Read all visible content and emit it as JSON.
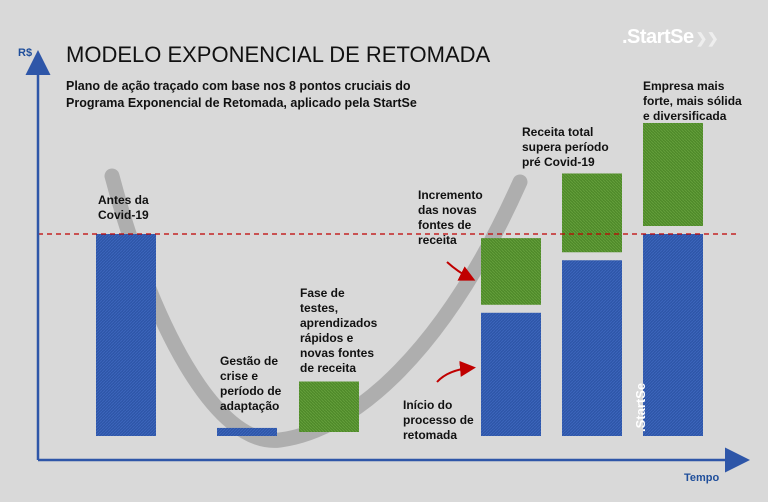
{
  "brand": {
    "logo_text": ".StartSe",
    "logo_vertical_text": ".StartSe"
  },
  "chart_data": {
    "type": "bar",
    "title": "MODELO EXPONENCIAL DE RETOMADA",
    "subtitle": "Plano de ação traçado com base nos 8 pontos cruciais do Programa Exponencial de Retomada, aplicado pela StartSe",
    "xlabel": "Tempo",
    "ylabel": "R$",
    "ylim": [
      0,
      100
    ],
    "reference_line": {
      "value": 100,
      "style": "dashed",
      "color": "#c00000"
    },
    "categories": [
      "Antes da Covid-19",
      "Gestão de crise e período de adaptação",
      "Fase de testes, aprendizados rápidos e novas fontes de receita",
      "Início do processo de retomada",
      "Receita total supera período pré Covid-19",
      "Empresa mais forte, mais sólida e diversificada"
    ],
    "series": [
      {
        "values": [
          100,
          4,
          0,
          61,
          87,
          100
        ],
        "color": "#2e56a8"
      },
      {
        "values": [
          0,
          0,
          25,
          33,
          39,
          51
        ],
        "color": "#4f8a2a"
      }
    ],
    "annotations": [
      {
        "text": "Antes da Covid-19",
        "bar": 0
      },
      {
        "text": "Gestão de crise e período de adaptação",
        "bar": 1
      },
      {
        "text": "Fase de testes, aprendizados rápidos e novas fontes de receita",
        "bar": 2
      },
      {
        "text": "Incremento das novas fontes de receita",
        "bar": 3,
        "arrow": true
      },
      {
        "text": "Início do processo de retomada",
        "bar": 3,
        "arrow": true
      },
      {
        "text": "Receita total supera período pré Covid-19",
        "bar": 4
      },
      {
        "text": "Empresa mais forte, mais sólida e diversificada",
        "bar": 5
      }
    ],
    "colors": {
      "blue": "#2e56a8",
      "green": "#4f8a2a",
      "axis": "#2e56a8",
      "curve": "#a6a6a6",
      "reference": "#c00000"
    }
  }
}
